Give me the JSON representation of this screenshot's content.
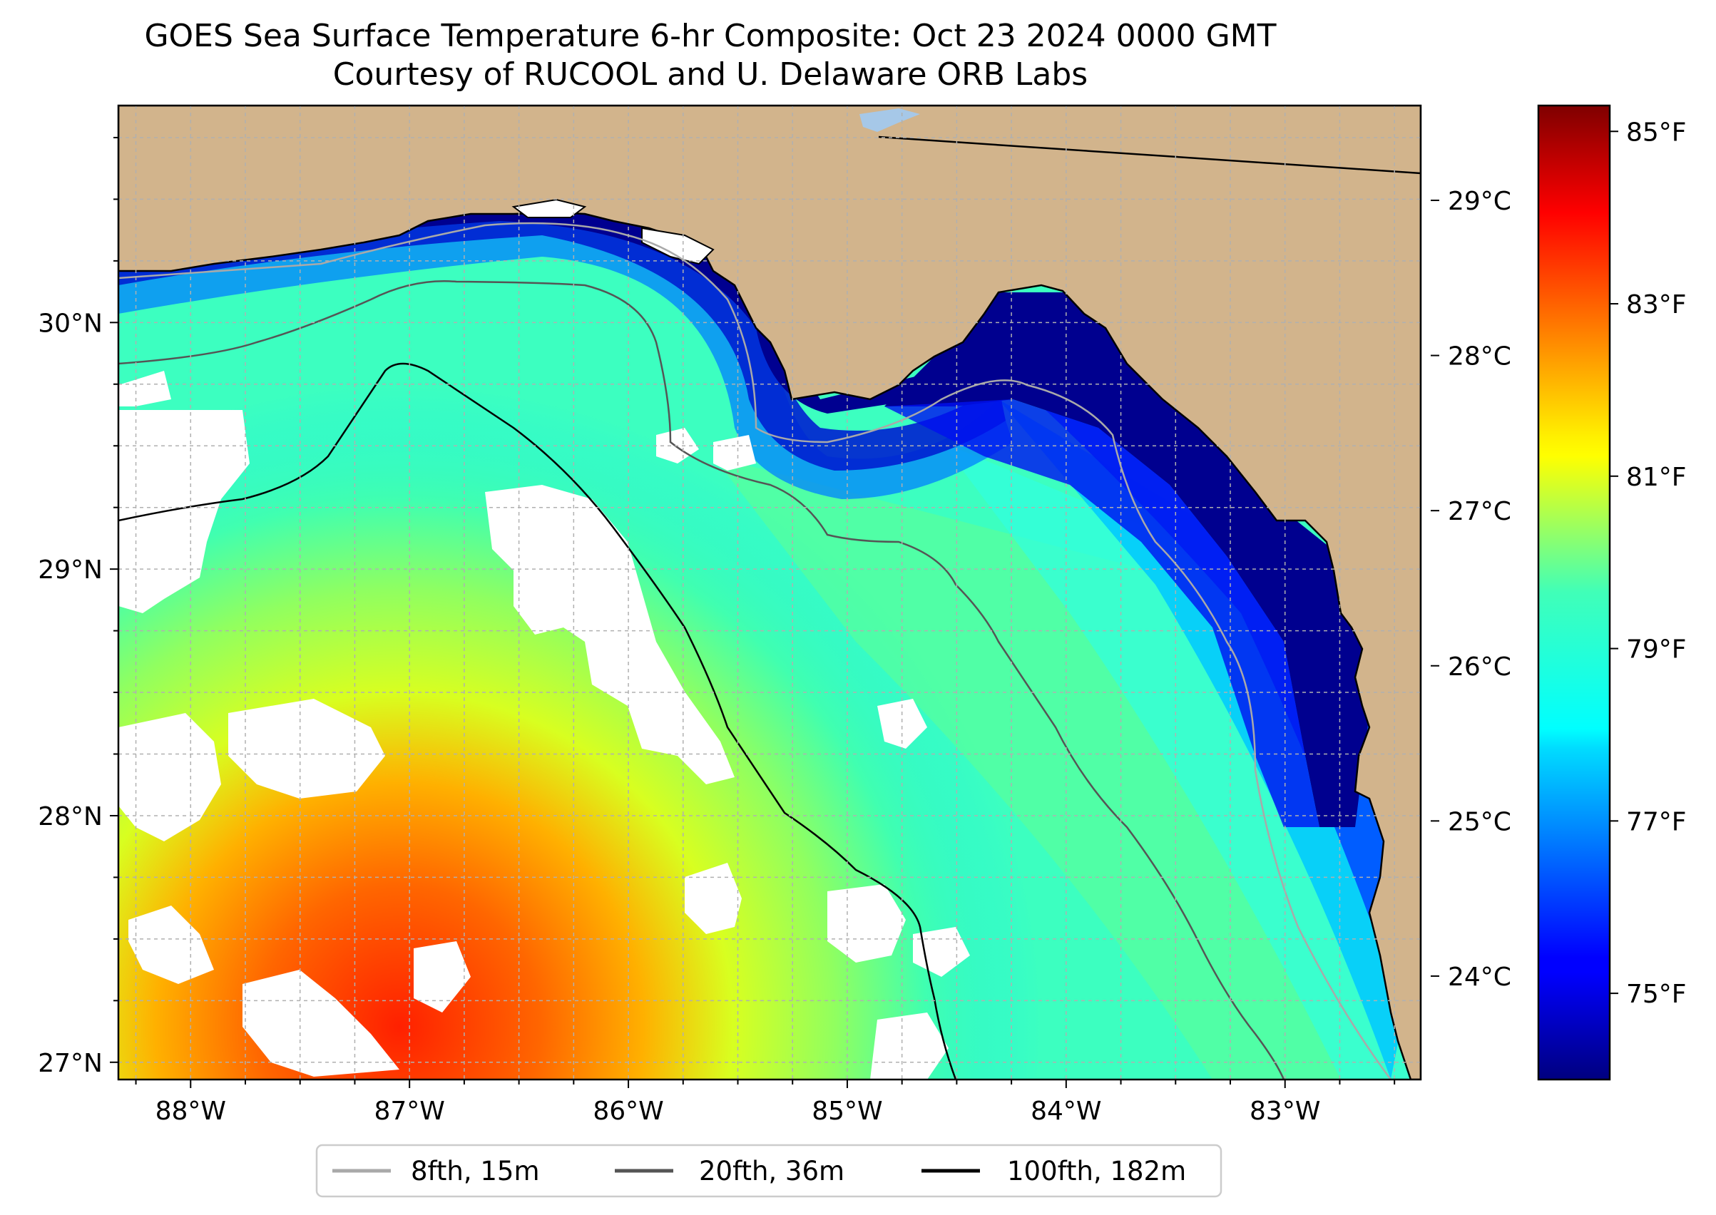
{
  "title": "GOES Sea Surface Temperature 6-hr Composite: Oct 23 2024 0000 GMT",
  "subtitle": "Courtesy of RUCOOL and U. Delaware ORB Labs",
  "map": {
    "lon_range": [
      -88.33,
      -82.38
    ],
    "lat_range": [
      26.93,
      30.88
    ],
    "lon_ticks": [
      {
        "value": -88,
        "label": "88°W"
      },
      {
        "value": -87,
        "label": "87°W"
      },
      {
        "value": -86,
        "label": "86°W"
      },
      {
        "value": -85,
        "label": "85°W"
      },
      {
        "value": -84,
        "label": "84°W"
      },
      {
        "value": -83,
        "label": "83°W"
      }
    ],
    "lat_ticks": [
      {
        "value": 27,
        "label": "27°N"
      },
      {
        "value": 28,
        "label": "28°N"
      },
      {
        "value": 29,
        "label": "29°N"
      },
      {
        "value": 30,
        "label": "30°N"
      }
    ],
    "grid": true,
    "land_color": "#d2b48c",
    "nodata_color": "#ffffff"
  },
  "colorbar": {
    "colormap": "jet",
    "fahrenheit_range": [
      74.0,
      85.3
    ],
    "celsius_ticks": [
      "24°C",
      "25°C",
      "26°C",
      "27°C",
      "28°C",
      "29°C"
    ],
    "fahrenheit_ticks": [
      "75°F",
      "77°F",
      "79°F",
      "81°F",
      "83°F",
      "85°F"
    ]
  },
  "legend": {
    "placement": "bottom-center",
    "entries": [
      {
        "label": "8fth, 15m",
        "color": "#a9a9a9"
      },
      {
        "label": "20fth, 36m",
        "color": "#555555"
      },
      {
        "label": "100fth, 182m",
        "color": "#000000"
      }
    ]
  }
}
